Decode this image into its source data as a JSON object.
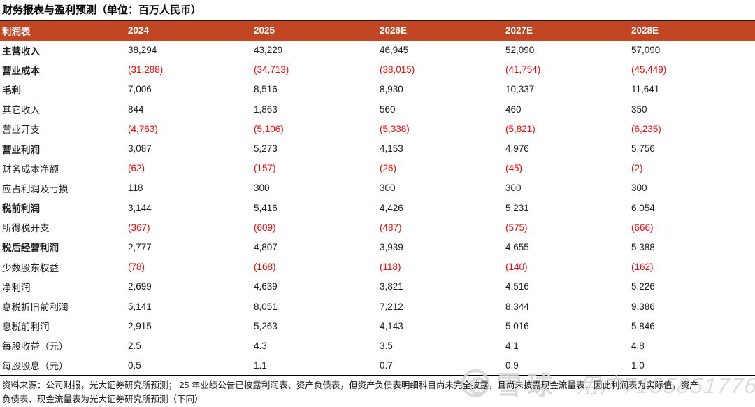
{
  "chart_data": {
    "type": "table",
    "title": "财务报表与盈利预测（单位：百万人民币）",
    "columns": [
      "利润表",
      "2024",
      "2025",
      "2026E",
      "2027E",
      "2028E"
    ],
    "rows": [
      {
        "label": "主营收入",
        "bold": true,
        "values": [
          "38,294",
          "43,229",
          "46,945",
          "52,090",
          "57,090"
        ]
      },
      {
        "label": "营业成本",
        "bold": true,
        "values": [
          "(31,288)",
          "(34,713)",
          "(38,015)",
          "(41,754)",
          "(45,449)"
        ]
      },
      {
        "label": "毛利",
        "bold": true,
        "values": [
          "7,006",
          "8,516",
          "8,930",
          "10,337",
          "11,641"
        ]
      },
      {
        "label": "其它收入",
        "bold": false,
        "values": [
          "844",
          "1,863",
          "560",
          "460",
          "350"
        ]
      },
      {
        "label": "营业开支",
        "bold": false,
        "values": [
          "(4,763)",
          "(5,106)",
          "(5,338)",
          "(5,821)",
          "(6,235)"
        ]
      },
      {
        "label": "营业利润",
        "bold": true,
        "values": [
          "3,087",
          "5,273",
          "4,153",
          "4,976",
          "5,756"
        ]
      },
      {
        "label": "财务成本净额",
        "bold": false,
        "values": [
          "(62)",
          "(157)",
          "(26)",
          "(45)",
          "(2)"
        ]
      },
      {
        "label": "应占利润及亏损",
        "bold": false,
        "values": [
          "118",
          "300",
          "300",
          "300",
          "300"
        ]
      },
      {
        "label": "税前利润",
        "bold": true,
        "values": [
          "3,144",
          "5,416",
          "4,426",
          "5,231",
          "6,054"
        ]
      },
      {
        "label": "所得税开支",
        "bold": false,
        "values": [
          "(367)",
          "(609)",
          "(487)",
          "(575)",
          "(666)"
        ]
      },
      {
        "label": "税后经营利润",
        "bold": true,
        "values": [
          "2,777",
          "4,807",
          "3,939",
          "4,655",
          "5,388"
        ]
      },
      {
        "label": "少数股东权益",
        "bold": false,
        "values": [
          "(78)",
          "(168)",
          "(118)",
          "(140)",
          "(162)"
        ]
      },
      {
        "label": "净利润",
        "bold": false,
        "values": [
          "2,699",
          "4,639",
          "3,821",
          "4,516",
          "5,226"
        ]
      },
      {
        "label": "息税折旧前利润",
        "bold": false,
        "values": [
          "5,141",
          "8,051",
          "7,212",
          "8,344",
          "9,386"
        ]
      },
      {
        "label": "息税前利润",
        "bold": false,
        "values": [
          "2,915",
          "5,263",
          "4,143",
          "5,016",
          "5,846"
        ]
      },
      {
        "label": "每股收益（元）",
        "bold": false,
        "values": [
          "2.5",
          "4.3",
          "3.5",
          "4.1",
          "4.8"
        ]
      },
      {
        "label": "每股股息（元）",
        "bold": false,
        "values": [
          "0.5",
          "1.1",
          "0.7",
          "0.9",
          "1.0"
        ]
      }
    ]
  },
  "footer": {
    "lines": [
      "资料来源：公司财报，光大证券研究所预测；  25 年业绩公告已披露利润表、资产负债表，但资产负债表明细科目尚未完全披露，且尚未披露现金流量表，因此利润表为实际值，资产",
      "负债表、现金流量表为光大证券研究所预测（下同）"
    ]
  },
  "watermark": {
    "brand": "雪球",
    "user_id": "用户7135851776"
  },
  "colors": {
    "header_bg": "#C24524",
    "header_text": "#FFFFFF",
    "negative_value": "#FF0000",
    "body_text": "#1C1C1C",
    "watermark": "#D4D4D4"
  }
}
